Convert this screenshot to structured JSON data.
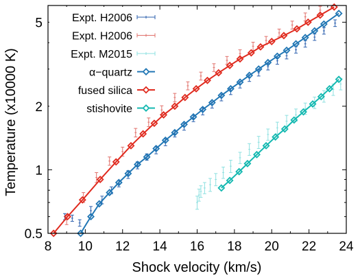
{
  "chart_data": {
    "type": "line",
    "xlabel": "Shock velocity (km/s)",
    "ylabel": "Temperature (x10000 K)",
    "xlim": [
      8,
      24
    ],
    "ylim": [
      0.5,
      6
    ],
    "yscale": "log",
    "grid": false,
    "legend_position": "top-left",
    "x_ticks": [
      8,
      10,
      12,
      14,
      16,
      18,
      20,
      22,
      24
    ],
    "y_ticks": [
      0.5,
      1,
      2,
      5
    ],
    "x_tick_labels": [
      "8",
      "10",
      "12",
      "14",
      "16",
      "18",
      "20",
      "22",
      "24"
    ],
    "y_tick_labels": [
      "0.5",
      "1",
      "2",
      "5"
    ],
    "series": [
      {
        "name": "Expt. H2006",
        "kind": "errorbar",
        "color": "#2b5fae",
        "points": [
          [
            8.9,
            0.6,
            0.02
          ],
          [
            9.3,
            0.59,
            0.02
          ],
          [
            9.7,
            0.56,
            0.02
          ],
          [
            10.3,
            0.64,
            0.03
          ],
          [
            10.9,
            0.72,
            0.03
          ],
          [
            11.4,
            0.8,
            0.03
          ],
          [
            11.8,
            0.86,
            0.03
          ],
          [
            12.3,
            0.95,
            0.04
          ],
          [
            12.8,
            1.05,
            0.04
          ],
          [
            13.3,
            1.15,
            0.04
          ],
          [
            13.8,
            1.24,
            0.05
          ],
          [
            14.3,
            1.35,
            0.05
          ],
          [
            14.8,
            1.48,
            0.05
          ],
          [
            15.3,
            1.6,
            0.06
          ],
          [
            15.8,
            1.75,
            0.06
          ],
          [
            16.3,
            1.89,
            0.07
          ],
          [
            16.8,
            2.03,
            0.07
          ],
          [
            17.3,
            2.2,
            0.08
          ],
          [
            17.8,
            2.35,
            0.08
          ],
          [
            18.3,
            2.53,
            0.09
          ],
          [
            18.8,
            2.72,
            0.1
          ],
          [
            19.3,
            2.88,
            0.1
          ],
          [
            19.8,
            3.08,
            0.11
          ],
          [
            20.3,
            3.28,
            0.12
          ],
          [
            20.8,
            3.47,
            0.12
          ],
          [
            21.3,
            3.7,
            0.13
          ],
          [
            21.8,
            3.95,
            0.14
          ],
          [
            22.3,
            4.25,
            0.15
          ],
          [
            22.8,
            4.55,
            0.16
          ],
          [
            23.4,
            4.95,
            0.18
          ]
        ]
      },
      {
        "name": "Expt. H2006",
        "kind": "errorbar",
        "color": "#e0706a",
        "points": [
          [
            9.0,
            0.58,
            0.03
          ],
          [
            9.9,
            0.74,
            0.04
          ],
          [
            10.6,
            0.92,
            0.05
          ],
          [
            11.3,
            1.1,
            0.05
          ],
          [
            12.0,
            1.22,
            0.06
          ],
          [
            12.7,
            1.5,
            0.07
          ],
          [
            13.4,
            1.68,
            0.08
          ],
          [
            14.1,
            1.92,
            0.09
          ],
          [
            14.8,
            2.2,
            0.1
          ],
          [
            15.5,
            2.5,
            0.11
          ],
          [
            16.2,
            2.78,
            0.12
          ],
          [
            16.9,
            3.05,
            0.13
          ],
          [
            17.6,
            3.3,
            0.14
          ],
          [
            18.3,
            3.55,
            0.15
          ],
          [
            19.0,
            3.85,
            0.17
          ],
          [
            19.7,
            4.1,
            0.18
          ],
          [
            20.4,
            4.45,
            0.19
          ],
          [
            21.1,
            4.85,
            0.21
          ],
          [
            21.8,
            5.3,
            0.23
          ],
          [
            22.6,
            5.7,
            0.25
          ]
        ]
      },
      {
        "name": "Expt. M2015",
        "kind": "errorbar",
        "color": "#8ee0e0",
        "points": [
          [
            16.0,
            0.7,
            0.05
          ],
          [
            16.1,
            0.76,
            0.05
          ],
          [
            16.2,
            0.79,
            0.05
          ],
          [
            16.4,
            0.82,
            0.05
          ],
          [
            16.7,
            0.85,
            0.06
          ],
          [
            17.0,
            0.9,
            0.06
          ],
          [
            17.4,
            0.97,
            0.06
          ],
          [
            17.8,
            1.04,
            0.07
          ],
          [
            18.3,
            1.14,
            0.07
          ],
          [
            18.8,
            1.25,
            0.08
          ],
          [
            19.3,
            1.35,
            0.09
          ],
          [
            19.8,
            1.47,
            0.09
          ],
          [
            20.3,
            1.58,
            0.1
          ],
          [
            20.8,
            1.7,
            0.11
          ],
          [
            21.3,
            1.82,
            0.12
          ],
          [
            21.8,
            1.95,
            0.12
          ],
          [
            22.3,
            2.08,
            0.13
          ],
          [
            22.8,
            2.23,
            0.14
          ],
          [
            23.3,
            2.4,
            0.15
          ],
          [
            23.7,
            2.55,
            0.16
          ]
        ]
      },
      {
        "name": "α−quartz",
        "kind": "line-marker",
        "color": "#2076b4",
        "x": [
          9.75,
          10.3,
          10.75,
          11.3,
          11.8,
          12.3,
          12.8,
          13.3,
          13.8,
          14.3,
          14.8,
          15.3,
          15.8,
          16.3,
          16.8,
          17.3,
          17.8,
          18.3,
          18.8,
          19.3,
          19.8,
          20.3,
          20.8,
          21.3,
          21.8,
          22.3,
          22.8,
          23.6
        ],
        "values": [
          0.5,
          0.6,
          0.69,
          0.78,
          0.87,
          0.96,
          1.06,
          1.15,
          1.26,
          1.38,
          1.5,
          1.64,
          1.78,
          1.93,
          2.08,
          2.25,
          2.42,
          2.6,
          2.8,
          3.0,
          3.22,
          3.45,
          3.68,
          3.95,
          4.23,
          4.55,
          4.9,
          5.5
        ]
      },
      {
        "name": "fused silica",
        "kind": "line-marker",
        "color": "#e02a1e",
        "x": [
          8.3,
          9.05,
          9.85,
          10.8,
          11.65,
          12.45,
          13.1,
          13.7,
          14.2,
          14.8,
          15.35,
          15.95,
          16.55,
          17.15,
          17.75,
          18.3,
          18.9,
          19.4,
          20.0,
          20.65,
          21.35,
          21.95,
          22.6,
          23.35
        ],
        "values": [
          0.5,
          0.6,
          0.72,
          0.9,
          1.09,
          1.3,
          1.48,
          1.66,
          1.82,
          2.0,
          2.2,
          2.42,
          2.65,
          2.88,
          3.12,
          3.35,
          3.58,
          3.82,
          4.05,
          4.32,
          4.65,
          5.0,
          5.4,
          5.9
        ]
      },
      {
        "name": "stishovite",
        "kind": "line-marker",
        "color": "#13b8b0",
        "x": [
          17.3,
          17.75,
          18.25,
          18.7,
          19.2,
          19.7,
          20.2,
          20.7,
          21.2,
          21.7,
          22.2,
          22.65,
          23.1,
          23.6
        ],
        "values": [
          0.82,
          0.89,
          0.98,
          1.07,
          1.18,
          1.3,
          1.43,
          1.56,
          1.72,
          1.88,
          2.05,
          2.22,
          2.42,
          2.68
        ]
      }
    ]
  }
}
